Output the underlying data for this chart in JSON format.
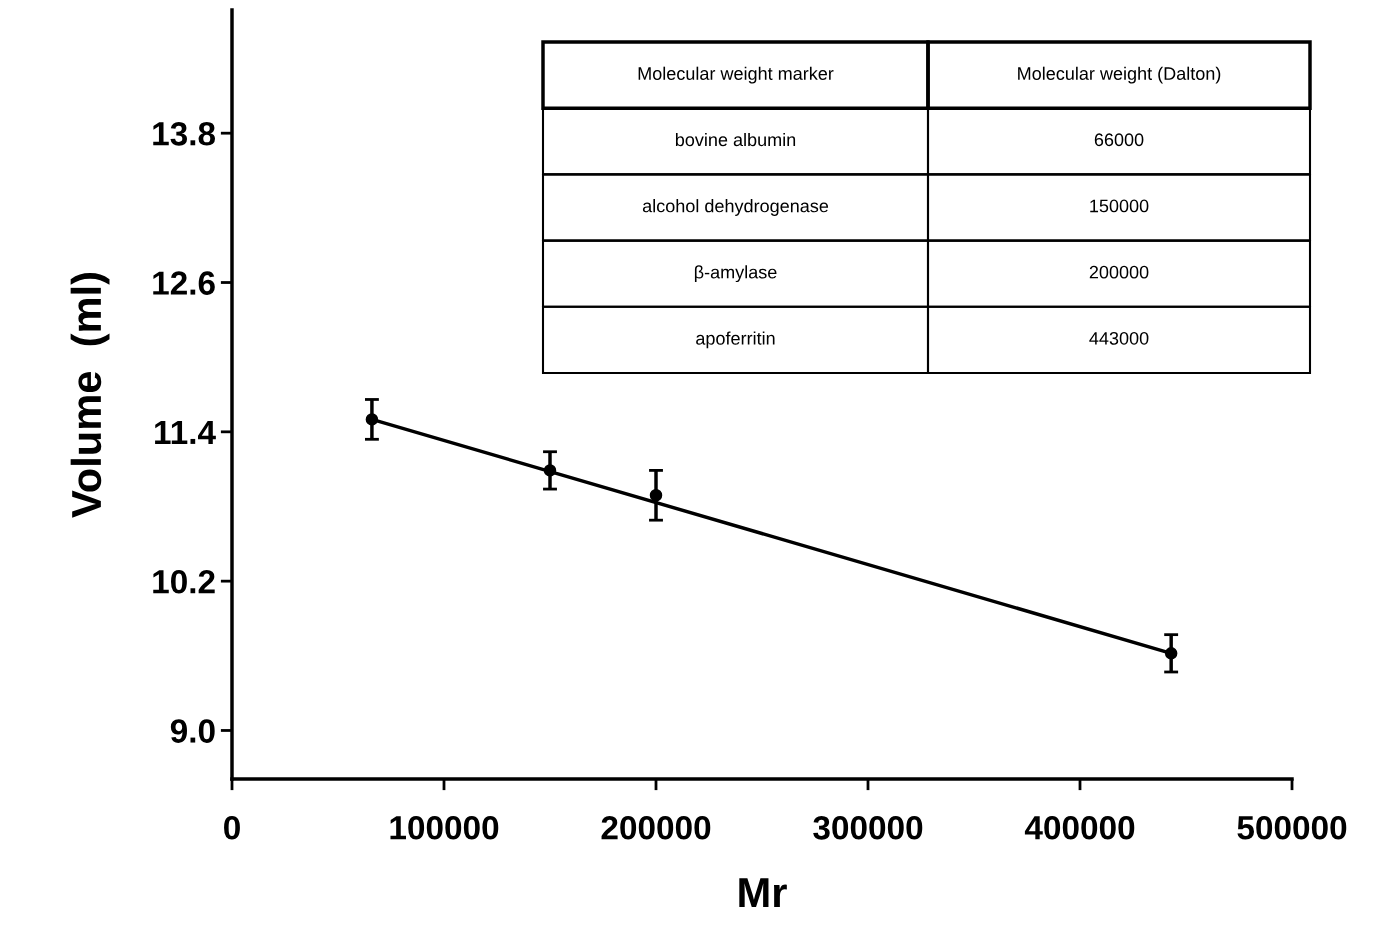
{
  "chart_data": {
    "type": "scatter",
    "xlabel": "Mr",
    "ylabel": "Volume  (ml)",
    "xlim": [
      0,
      500000
    ],
    "ylim": [
      8.61,
      14.79
    ],
    "xticks": [
      0,
      100000,
      200000,
      300000,
      400000,
      500000
    ],
    "yticks": [
      {
        "value": 9.0,
        "label": "9.0"
      },
      10.2,
      12.6,
      11.4,
      13.8
    ],
    "grid": false,
    "legend": false,
    "marker": "circle",
    "annotations": [
      "Molecular weight marker",
      "Molecular weight (Dalton)",
      "bovine albumin",
      "66000",
      "alcohol dehydrogenase",
      "150000",
      "β-amylase",
      "200000",
      "apoferritin",
      "443000"
    ],
    "series": [
      {
        "color": "#000000",
        "x": [
          66000,
          150000,
          200000,
          443000
        ],
        "values": [
          11.5,
          11.09,
          10.89,
          9.62
        ],
        "errors": [
          0.16,
          0.15,
          0.2,
          0.15
        ]
      },
      {
        "type": "line",
        "marker": "none",
        "color": "#000000",
        "line_style": "solid",
        "x": [
          66000,
          443000
        ],
        "values": [
          11.5,
          9.62
        ]
      }
    ]
  }
}
